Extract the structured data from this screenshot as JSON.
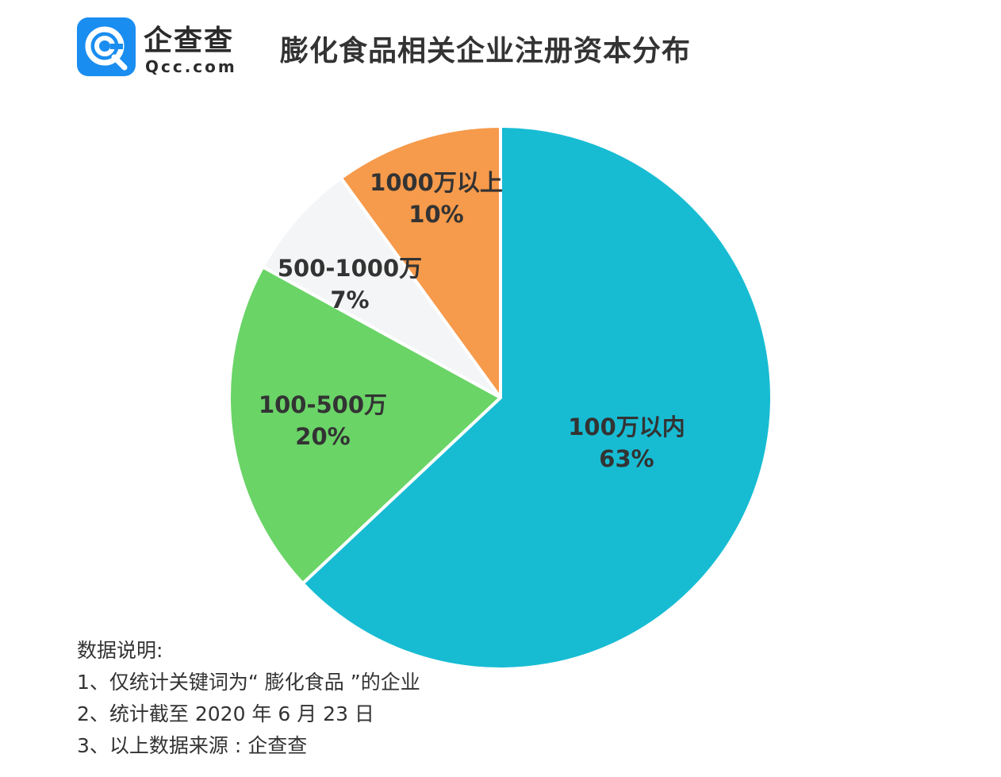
{
  "header": {
    "logo_name": "企查查",
    "logo_domain": "Qcc.com",
    "title": "膨化食品相关企业注册资本分布"
  },
  "chart_data": {
    "type": "pie",
    "title": "膨化食品相关企业注册资本分布",
    "slices": [
      {
        "label": "100万以内",
        "value": 63,
        "value_label": "63%",
        "color": "#17bcd3"
      },
      {
        "label": "100-500万",
        "value": 20,
        "value_label": "20%",
        "color": "#6ad467"
      },
      {
        "label": "500-1000万",
        "value": 7,
        "value_label": "7%",
        "color": "#f3f5f6"
      },
      {
        "label": "1000万以上",
        "value": 10,
        "value_label": "10%",
        "color": "#f69a4b"
      }
    ],
    "start_angle": "12 o'clock",
    "direction": "clockwise",
    "legend": "none"
  },
  "notes": {
    "heading": "数据说明:",
    "lines": [
      "1、仅统计关键词为“ 膨化食品 ”的企业",
      "2、统计截至 2020 年 6 月 23 日",
      "3、以上数据来源 : 企查查"
    ]
  }
}
